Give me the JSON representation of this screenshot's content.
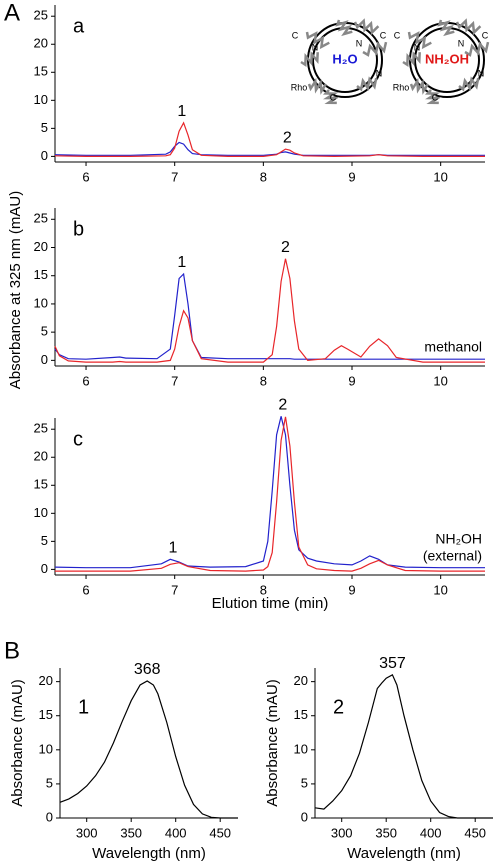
{
  "figure": {
    "panel_labels": [
      "A",
      "B"
    ],
    "y_label": "Absorbance at 325 nm (mAU)",
    "x_label": "Elution time (min)"
  },
  "chart_data": [
    {
      "type": "line",
      "panel_label": "a",
      "xlim": [
        5.65,
        10.5
      ],
      "ylim": [
        -1,
        27
      ],
      "xticks": [
        6,
        7,
        8,
        9,
        10
      ],
      "yticks": [
        0,
        5,
        10,
        15,
        20,
        25
      ],
      "x": [
        5.65,
        6.0,
        6.5,
        6.9,
        6.95,
        7.0,
        7.05,
        7.1,
        7.15,
        7.2,
        7.3,
        7.6,
        8.0,
        8.15,
        8.2,
        8.25,
        8.3,
        8.35,
        8.45,
        8.8,
        9.2,
        9.3,
        9.4,
        9.8,
        10.5
      ],
      "series": [
        {
          "color": "#2222cc",
          "values": [
            0.3,
            0.2,
            0.2,
            0.4,
            0.8,
            1.8,
            2.5,
            2.2,
            1.2,
            0.5,
            0.3,
            0.2,
            0.2,
            0.4,
            0.7,
            0.8,
            0.6,
            0.4,
            0.2,
            0.2,
            0.2,
            0.3,
            0.2,
            0.2,
            0.2
          ]
        },
        {
          "color": "#e8262a",
          "values": [
            0.1,
            0.0,
            0.0,
            0.1,
            0.3,
            1.5,
            4.5,
            6.0,
            3.8,
            1.2,
            0.2,
            0.0,
            0.0,
            0.3,
            0.8,
            1.3,
            1.1,
            0.6,
            0.1,
            0.0,
            0.1,
            0.3,
            0.1,
            0.0,
            0.0
          ]
        }
      ],
      "annotations": [
        {
          "text": "1",
          "x": 7.08,
          "y": 6.0
        },
        {
          "text": "2",
          "x": 8.27,
          "y": 1.3
        }
      ],
      "insets": [
        {
          "label": "H₂O",
          "color": "#1a1ad6",
          "termini": [
            "C",
            "N",
            "C",
            "N",
            "N",
            "Rho",
            "C"
          ]
        },
        {
          "label": "NH₂OH",
          "color": "#e01818",
          "termini": [
            "C",
            "N",
            "C",
            "N",
            "N",
            "Rho",
            "C"
          ]
        }
      ]
    },
    {
      "type": "line",
      "panel_label": "b",
      "note": [
        "methanol"
      ],
      "xlim": [
        5.65,
        10.5
      ],
      "ylim": [
        -1,
        27
      ],
      "xticks": [
        6,
        7,
        8,
        9,
        10
      ],
      "yticks": [
        0,
        5,
        10,
        15,
        20,
        25
      ],
      "x": [
        5.65,
        5.7,
        5.8,
        6.0,
        6.3,
        6.38,
        6.45,
        6.8,
        6.95,
        7.0,
        7.05,
        7.1,
        7.15,
        7.2,
        7.3,
        7.6,
        8.0,
        8.1,
        8.15,
        8.2,
        8.25,
        8.3,
        8.35,
        8.4,
        8.5,
        8.7,
        8.8,
        8.88,
        8.95,
        9.1,
        9.2,
        9.3,
        9.4,
        9.5,
        9.8,
        10.5
      ],
      "series": [
        {
          "color": "#2222cc",
          "values": [
            2.0,
            1.0,
            0.3,
            0.2,
            0.5,
            0.6,
            0.4,
            0.3,
            2.0,
            8.0,
            14.5,
            15.3,
            10.0,
            3.5,
            0.5,
            0.3,
            0.3,
            0.3,
            0.3,
            0.3,
            0.3,
            0.3,
            0.2,
            0.2,
            0.2,
            0.2,
            0.2,
            0.2,
            0.2,
            0.2,
            0.2,
            0.2,
            0.2,
            0.2,
            0.2,
            0.2
          ]
        },
        {
          "color": "#e8262a",
          "values": [
            2.5,
            0.8,
            -0.1,
            -0.3,
            -0.3,
            -0.2,
            -0.3,
            -0.3,
            0.0,
            2.0,
            6.0,
            8.8,
            7.5,
            3.5,
            0.3,
            -0.3,
            -0.3,
            1.0,
            6.0,
            14.0,
            18.0,
            14.5,
            7.0,
            2.0,
            0.0,
            0.3,
            1.8,
            2.6,
            2.0,
            0.6,
            2.5,
            3.8,
            2.6,
            0.5,
            -0.3,
            -0.3
          ]
        }
      ],
      "annotations": [
        {
          "text": "1",
          "x": 7.08,
          "y": 15.3
        },
        {
          "text": "2",
          "x": 8.25,
          "y": 18.0
        }
      ]
    },
    {
      "type": "line",
      "panel_label": "c",
      "note": [
        "NH₂OH",
        "(external)"
      ],
      "xlim": [
        5.65,
        10.5
      ],
      "ylim": [
        -1,
        27
      ],
      "xticks": [
        6,
        7,
        8,
        9,
        10
      ],
      "yticks": [
        0,
        5,
        10,
        15,
        20,
        25
      ],
      "x": [
        5.65,
        6.0,
        6.5,
        6.85,
        6.95,
        7.05,
        7.15,
        7.4,
        7.8,
        8.0,
        8.05,
        8.1,
        8.15,
        8.2,
        8.25,
        8.3,
        8.35,
        8.4,
        8.5,
        8.6,
        8.8,
        9.0,
        9.1,
        9.2,
        9.3,
        9.4,
        9.6,
        10.0,
        10.5
      ],
      "series": [
        {
          "color": "#2222cc",
          "values": [
            0.4,
            0.3,
            0.3,
            1.0,
            1.8,
            1.3,
            0.6,
            0.4,
            0.5,
            1.5,
            5.0,
            14.0,
            24.0,
            27.3,
            24.0,
            15.0,
            7.0,
            3.5,
            2.0,
            1.5,
            1.0,
            0.8,
            1.5,
            2.4,
            1.8,
            0.8,
            0.4,
            0.3,
            0.3
          ]
        },
        {
          "color": "#e8262a",
          "values": [
            -0.3,
            -0.3,
            -0.3,
            0.2,
            0.9,
            1.2,
            0.5,
            -0.2,
            -0.3,
            -0.1,
            0.5,
            3.0,
            12.0,
            23.0,
            27.2,
            22.0,
            12.0,
            4.0,
            0.8,
            0.1,
            -0.2,
            -0.3,
            0.2,
            1.0,
            1.6,
            0.8,
            -0.2,
            -0.3,
            -0.3
          ]
        }
      ],
      "annotations": [
        {
          "text": "1",
          "x": 6.98,
          "y": 1.8
        },
        {
          "text": "2",
          "x": 8.22,
          "y": 27.3
        }
      ]
    },
    {
      "type": "line",
      "panel_label": "1",
      "y_label": "Absorbance (mAU)",
      "x_label": "Wavelength (nm)",
      "xlim": [
        270,
        470
      ],
      "ylim": [
        0,
        22
      ],
      "xticks": [
        300,
        350,
        400,
        450
      ],
      "yticks": [
        0,
        5,
        10,
        15,
        20
      ],
      "x": [
        270,
        280,
        290,
        300,
        310,
        320,
        330,
        340,
        350,
        360,
        368,
        375,
        380,
        390,
        400,
        410,
        420,
        430,
        440,
        450,
        460,
        470
      ],
      "series": [
        {
          "color": "#000000",
          "values": [
            2.3,
            2.8,
            3.6,
            4.7,
            6.2,
            8.2,
            11.0,
            14.2,
            17.2,
            19.5,
            20.1,
            19.5,
            18.2,
            14.0,
            9.0,
            4.8,
            2.0,
            0.6,
            0.1,
            0.0,
            0.0,
            0.0
          ]
        }
      ],
      "annotations": [
        {
          "text": "368",
          "x": 368,
          "y": 20.1
        }
      ]
    },
    {
      "type": "line",
      "panel_label": "2",
      "y_label": "Absorbance (mAU)",
      "x_label": "Wavelength (nm)",
      "xlim": [
        270,
        470
      ],
      "ylim": [
        0,
        22
      ],
      "xticks": [
        300,
        350,
        400,
        450
      ],
      "yticks": [
        0,
        5,
        10,
        15,
        20
      ],
      "x": [
        270,
        280,
        290,
        300,
        310,
        320,
        330,
        340,
        345,
        350,
        357,
        362,
        370,
        380,
        390,
        400,
        410,
        420,
        430,
        450,
        470
      ],
      "series": [
        {
          "color": "#000000",
          "values": [
            1.5,
            1.3,
            2.5,
            4.0,
            6.2,
            9.5,
            14.0,
            19.0,
            19.8,
            20.5,
            21.0,
            19.5,
            15.0,
            10.0,
            5.5,
            2.5,
            0.8,
            0.2,
            0.0,
            0.0,
            0.0
          ]
        }
      ],
      "annotations": [
        {
          "text": "357",
          "x": 357,
          "y": 21.0
        }
      ]
    }
  ]
}
